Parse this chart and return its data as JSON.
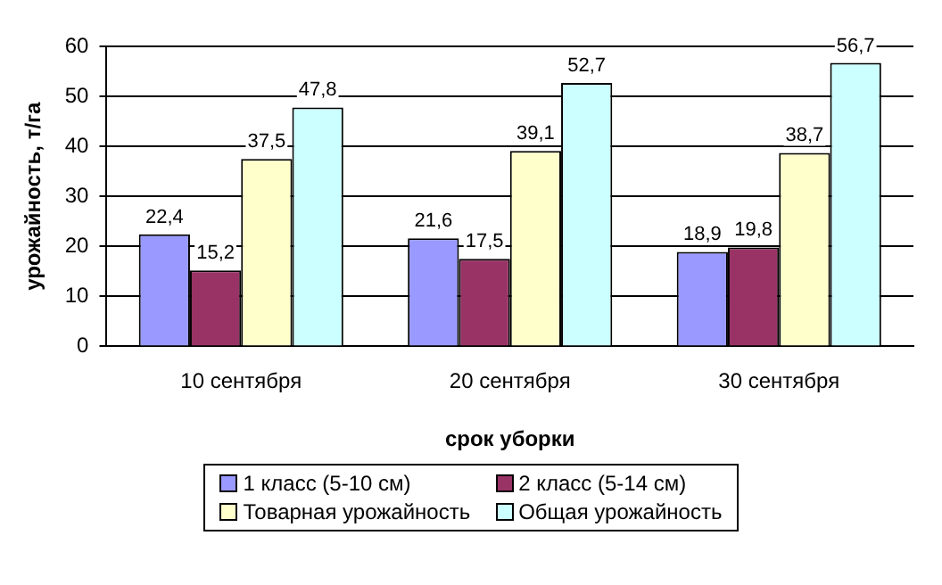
{
  "chart_data": {
    "type": "bar",
    "xlabel": "срок уборки",
    "ylabel": "урожайность, т/га",
    "categories": [
      "10 сентября",
      "20 сентября",
      "30 сентября"
    ],
    "series": [
      {
        "name": "1 класс (5-10 см)",
        "color": "#9999ff",
        "values": [
          22.4,
          21.6,
          18.9
        ],
        "value_labels": [
          "22,4",
          "21,6",
          "18,9"
        ]
      },
      {
        "name": "2 класс (5-14 см)",
        "color": "#993366",
        "values": [
          15.2,
          17.5,
          19.8
        ],
        "value_labels": [
          "15,2",
          "17,5",
          "19,8"
        ]
      },
      {
        "name": "Товарная урожайность",
        "color": "#ffffcc",
        "values": [
          37.5,
          39.1,
          38.7
        ],
        "value_labels": [
          "37,5",
          "39,1",
          "38,7"
        ]
      },
      {
        "name": "Общая урожайность",
        "color": "#ccffff",
        "values": [
          47.8,
          52.7,
          56.7
        ],
        "value_labels": [
          "47,8",
          "52,7",
          "56,7"
        ]
      }
    ],
    "ylim": [
      0,
      60
    ],
    "yticks": [
      0,
      10,
      20,
      30,
      40,
      50,
      60
    ],
    "grid": "y",
    "legend": "bottom"
  }
}
